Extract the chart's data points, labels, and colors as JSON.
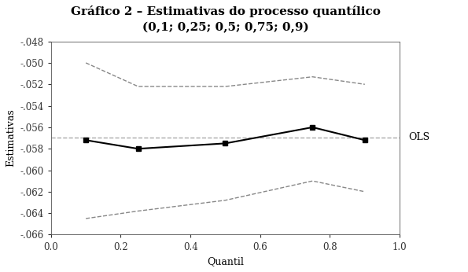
{
  "title_line1": "Gráfico 2 – Estimativas do processo quantílico",
  "title_line2": "(0,1; 0,25; 0,5; 0,75; 0,9)",
  "xlabel": "Quantil",
  "ylabel": "Estimativas",
  "ols_label": "OLS",
  "quantiles": [
    0.1,
    0.25,
    0.5,
    0.75,
    0.9
  ],
  "main_line": [
    -0.0572,
    -0.058,
    -0.0575,
    -0.056,
    -0.0572
  ],
  "upper_ci": [
    -0.05,
    -0.0522,
    -0.0522,
    -0.0513,
    -0.052
  ],
  "lower_ci": [
    -0.0645,
    -0.0638,
    -0.0628,
    -0.061,
    -0.062
  ],
  "ols_value": -0.05695,
  "xlim": [
    0.0,
    1.0
  ],
  "ylim": [
    -0.066,
    -0.048
  ],
  "yticks": [
    -0.048,
    -0.05,
    -0.052,
    -0.054,
    -0.056,
    -0.058,
    -0.06,
    -0.062,
    -0.064,
    -0.066
  ],
  "xticks": [
    0.0,
    0.2,
    0.4,
    0.6,
    0.8,
    1.0
  ],
  "background_color": "#ffffff",
  "main_color": "#000000",
  "ci_color": "#888888",
  "ols_color": "#aaaaaa",
  "title_fontsize": 11,
  "label_fontsize": 9,
  "tick_fontsize": 8.5,
  "ols_fontsize": 9
}
